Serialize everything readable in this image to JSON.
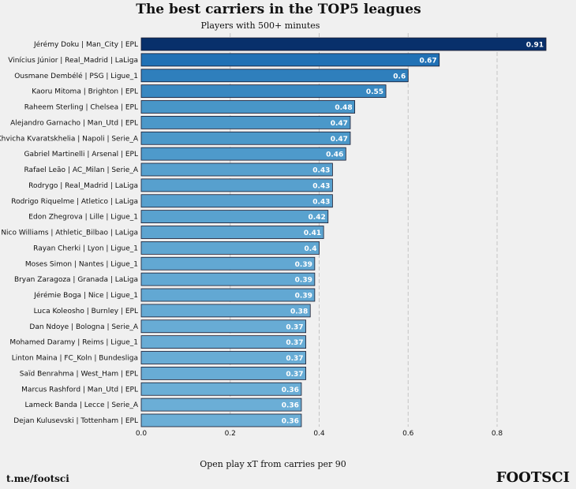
{
  "chart_data": {
    "type": "bar",
    "orientation": "horizontal",
    "title": "The best carriers in the TOP5 leagues",
    "subtitle": "Players with 500+ minutes",
    "xlabel": "Open play xT from carries per 90",
    "ylabel": "",
    "xlim": [
      0,
      0.93
    ],
    "xticks": [
      "0.0",
      "0.2",
      "0.4",
      "0.6",
      "0.8"
    ],
    "grid": "x, dashed",
    "colormap": "Blues",
    "categories": [
      "Jérémy Doku | Man_City | EPL",
      "Vinícius Júnior | Real_Madrid | LaLiga",
      "Ousmane Dembélé | PSG | Ligue_1",
      "Kaoru Mitoma | Brighton | EPL",
      "Raheem Sterling | Chelsea | EPL",
      "Alejandro Garnacho | Man_Utd | EPL",
      "Khvicha Kvaratskhelia | Napoli | Serie_A",
      "Gabriel Martinelli | Arsenal | EPL",
      "Rafael Leão | AC_Milan | Serie_A",
      "Rodrygo | Real_Madrid | LaLiga",
      "Rodrigo Riquelme | Atletico | LaLiga",
      "Edon Zhegrova | Lille | Ligue_1",
      "Nico Williams | Athletic_Bilbao | LaLiga",
      "Rayan Cherki | Lyon | Ligue_1",
      "Moses Simon | Nantes | Ligue_1",
      "Bryan Zaragoza | Granada | LaLiga",
      "Jérémie Boga | Nice | Ligue_1",
      "Luca Koleosho | Burnley | EPL",
      "Dan Ndoye | Bologna | Serie_A",
      "Mohamed Daramy | Reims | Ligue_1",
      "Linton Maina | FC_Koln | Bundesliga",
      "Saïd Benrahma | West_Ham | EPL",
      "Marcus Rashford | Man_Utd | EPL",
      "Lameck Banda | Lecce | Serie_A",
      "Dejan Kulusevski | Tottenham | EPL"
    ],
    "values": [
      0.91,
      0.67,
      0.6,
      0.55,
      0.48,
      0.47,
      0.47,
      0.46,
      0.43,
      0.43,
      0.43,
      0.42,
      0.41,
      0.4,
      0.39,
      0.39,
      0.39,
      0.38,
      0.37,
      0.37,
      0.37,
      0.37,
      0.36,
      0.36,
      0.36
    ],
    "value_labels": [
      "0.91",
      "0.67",
      "0.6",
      "0.55",
      "0.48",
      "0.47",
      "0.47",
      "0.46",
      "0.43",
      "0.43",
      "0.43",
      "0.42",
      "0.41",
      "0.4",
      "0.39",
      "0.39",
      "0.39",
      "0.38",
      "0.37",
      "0.37",
      "0.37",
      "0.37",
      "0.36",
      "0.36",
      "0.36"
    ]
  },
  "footer": {
    "left": "t.me/footsci",
    "right": "FOOTSCI"
  }
}
